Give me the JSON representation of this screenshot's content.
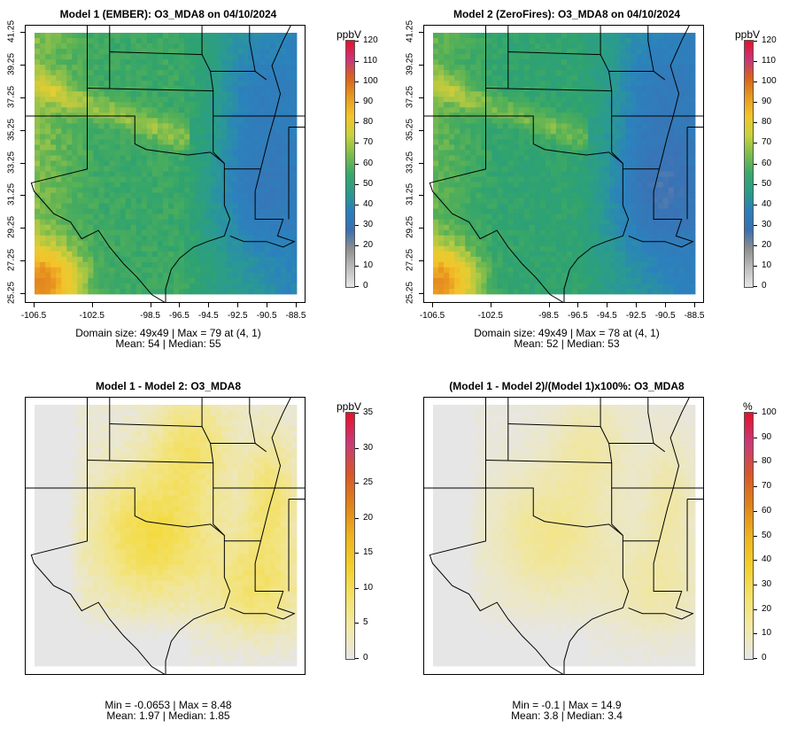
{
  "panels": [
    {
      "title": "Model 1 (EMBER): O3_MDA8 on 04/10/2024",
      "kind": "conc",
      "colorbar": {
        "unit": "ppbV",
        "labels": [
          "120",
          "110",
          "100",
          "90",
          "80",
          "70",
          "60",
          "50",
          "40",
          "30",
          "20",
          "10",
          "0"
        ]
      },
      "stats_line1": "Domain size: 49x49 | Max = 79 at (4, 1)",
      "stats_line2": "Mean: 54 |  Median: 55",
      "show_axes": true
    },
    {
      "title": "Model 2 (ZeroFires): O3_MDA8 on 04/10/2024",
      "kind": "conc",
      "colorbar": {
        "unit": "ppbV",
        "labels": [
          "120",
          "110",
          "100",
          "90",
          "80",
          "70",
          "60",
          "50",
          "40",
          "30",
          "20",
          "10",
          "0"
        ]
      },
      "stats_line1": "Domain size: 49x49 | Max = 78 at (4, 1)",
      "stats_line2": "Mean: 52 |  Median: 53",
      "show_axes": true
    },
    {
      "title": "Model 1 - Model 2: O3_MDA8",
      "kind": "diff",
      "colorbar": {
        "unit": "ppbV",
        "labels": [
          "35",
          "30",
          "25",
          "20",
          "15",
          "10",
          "5",
          "0"
        ]
      },
      "stats_line1": "Min = -0.0653 | Max = 8.48",
      "stats_line2": "Mean: 1.97 |  Median: 1.85",
      "show_axes": false
    },
    {
      "title": "(Model 1 - Model 2)/(Model 1)x100%: O3_MDA8",
      "kind": "pct",
      "colorbar": {
        "unit": "%",
        "labels": [
          "100",
          "90",
          "80",
          "70",
          "60",
          "50",
          "40",
          "30",
          "20",
          "10",
          "0"
        ]
      },
      "stats_line1": "Min = -0.1 | Max = 14.9",
      "stats_line2": "Mean: 3.8 |  Median: 3.4",
      "show_axes": false
    }
  ],
  "axes": {
    "y_ticks": [
      "41.25",
      "39.25",
      "37.25",
      "35.25",
      "33.25",
      "31.25",
      "29.25",
      "27.25",
      "25.25"
    ],
    "x_ticks": [
      "-106.5",
      "-102.5",
      "-98.5",
      "-96.5",
      "-94.5",
      "-92.5",
      "-90.5",
      "-88.5"
    ]
  },
  "colors": {
    "conc_scale": [
      "#e6e6e6",
      "#bdbdbd",
      "#8f8f8f",
      "#3a6fb0",
      "#2a7ebc",
      "#2a9c88",
      "#3aa86a",
      "#7cbd4a",
      "#c8d23b",
      "#f2c52a",
      "#e89b1f",
      "#d9651a",
      "#c9357b",
      "#e8102a"
    ],
    "diff_scale": [
      "#e6e6e6",
      "#f3e9a6",
      "#f5e26a",
      "#f3cf2a",
      "#eeb21e",
      "#e08318",
      "#d9562a",
      "#c93a7a",
      "#e8102a"
    ]
  }
}
